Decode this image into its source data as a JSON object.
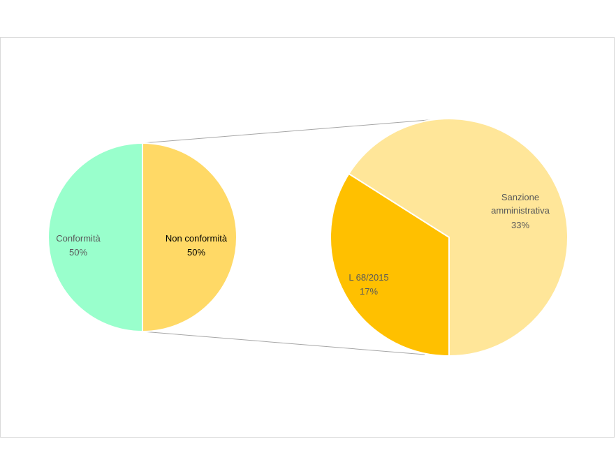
{
  "chart_data": {
    "type": "pie",
    "subtype": "pie-of-pie",
    "title": "",
    "primary": {
      "slices": [
        {
          "label": "Conformità",
          "value_label": "50%",
          "value": 50,
          "color": "#99FFCC"
        },
        {
          "label": "Non conformità",
          "value_label": "50%",
          "value": 50,
          "color": "#FFD966"
        }
      ]
    },
    "secondary": {
      "expands": "Non conformità",
      "slices": [
        {
          "label_lines": [
            "Sanzione",
            "amministrativa"
          ],
          "value_label": "33%",
          "value": 33,
          "color": "#FFE699"
        },
        {
          "label_lines": [
            "L 68/2015"
          ],
          "value_label": "17%",
          "value": 17,
          "color": "#FFC000"
        }
      ]
    },
    "connector_color": "#a6a6a6",
    "legend": "none",
    "grid": false
  }
}
